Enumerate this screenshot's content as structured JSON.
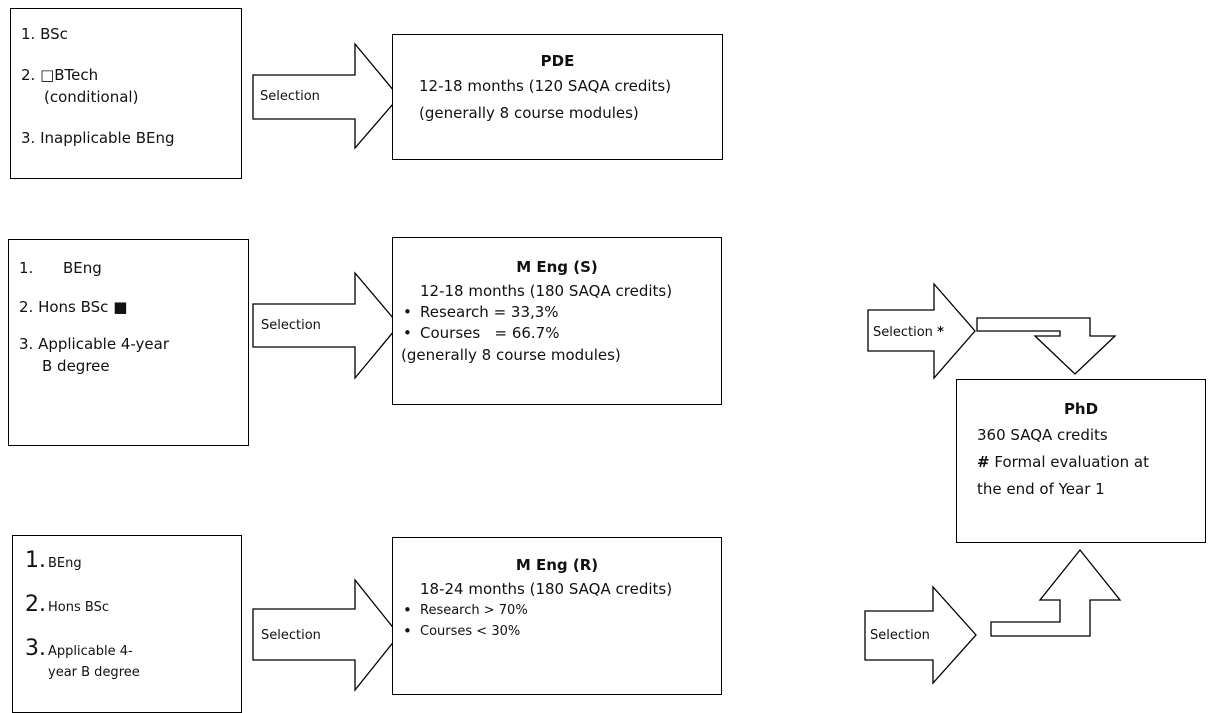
{
  "row1": {
    "input": {
      "items": [
        "1.  BSc",
        "2.  □BTech",
        "(conditional)",
        "3.  Inapplicable BEng"
      ]
    },
    "arrow_label": "Selection",
    "target": {
      "title": "PDE",
      "lines": [
        "12-18 months (120 SAQA credits)",
        "(generally 8 course modules)"
      ]
    }
  },
  "row2": {
    "input": {
      "items": [
        "1.",
        "BEng",
        "2.  Hons BSc ■",
        "3.  Applicable 4-year",
        "B degree"
      ]
    },
    "arrow_label": "Selection",
    "target": {
      "title": "M Eng (S)",
      "lines": [
        "12-18 months (180 SAQA credits)",
        "Research = 33,3%",
        "Courses   = 66.7%",
        "(generally 8 course modules)"
      ],
      "bullet": "•"
    },
    "exit_arrow_label": "Selection",
    "exit_marker": "*"
  },
  "row3": {
    "input": {
      "numbers": [
        "1.",
        "2.",
        "3."
      ],
      "items": [
        "BEng",
        "Hons BSc",
        "Applicable 4-",
        "year B degree"
      ]
    },
    "arrow_label": "Selection",
    "target": {
      "title": "M Eng (R)",
      "lines": [
        "18-24 months (180 SAQA credits)",
        "Research ",
        "> 70%",
        "Courses ",
        "< 30%"
      ],
      "bullet": "•"
    },
    "exit_arrow_label": "Selection"
  },
  "phd": {
    "title": "PhD",
    "lines": [
      "360 SAQA credits",
      "#",
      " Formal evaluation at",
      "the end of Year 1"
    ]
  }
}
